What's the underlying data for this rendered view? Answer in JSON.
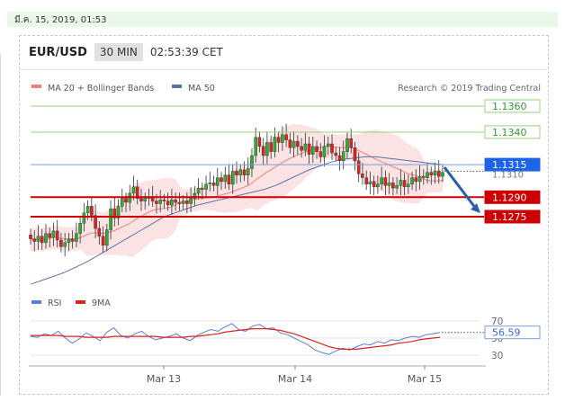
{
  "datetime": "มี.ค. 15, 2019, 01:53",
  "header": {
    "pair": "EUR/USD",
    "timeframe": "30 MIN",
    "time": "02:53:39 CET"
  },
  "legend": {
    "ma20": "MA 20 + Bollinger Bands",
    "ma50": "MA 50",
    "credit": "Research © 2019 Trading Central"
  },
  "rsi_legend": {
    "rsi": "RSI",
    "ma9": "9MA"
  },
  "colors": {
    "ma20": "#f08080",
    "ma50": "#5b73a8",
    "band": "#fadada",
    "up": "#33aa33",
    "down": "#dd2222",
    "resistance": "#cc0000",
    "support_green": "#9bd17a",
    "blue_line": "#7a9ee0",
    "blue_tag": "#1f63e6",
    "arrow": "#2a5fa8",
    "rsi": "#5b7ed8",
    "ma9": "#dd2222"
  },
  "chart_data": [
    {
      "type": "candlestick",
      "title": "EUR/USD",
      "timeframe": "30 MIN",
      "x_ticks": [
        "Mar 13",
        "Mar 14",
        "Mar 15"
      ],
      "ylim": [
        1.1212,
        1.1375
      ],
      "levels": [
        {
          "value": 1.136,
          "label": "1.1360",
          "style": "green"
        },
        {
          "value": 1.134,
          "label": "1.1340",
          "style": "green"
        },
        {
          "value": 1.1315,
          "label": "1.1315",
          "style": "blue"
        },
        {
          "value": 1.129,
          "label": "1.1290",
          "style": "red"
        },
        {
          "value": 1.1275,
          "label": "1.1275",
          "style": "red"
        }
      ],
      "current_price_label": "1.1310",
      "arrow": {
        "from": 1.1313,
        "to": 1.1275
      },
      "close_series": [
        1.1258,
        1.1256,
        1.126,
        1.1255,
        1.1262,
        1.1259,
        1.1264,
        1.1257,
        1.1252,
        1.1255,
        1.1258,
        1.1256,
        1.1262,
        1.127,
        1.1278,
        1.1283,
        1.1276,
        1.1266,
        1.126,
        1.1253,
        1.1265,
        1.1281,
        1.1274,
        1.1283,
        1.1289,
        1.1286,
        1.1293,
        1.1298,
        1.1289,
        1.1287,
        1.1289,
        1.129,
        1.1287,
        1.1285,
        1.1288,
        1.1287,
        1.1284,
        1.1288,
        1.1286,
        1.1285,
        1.1287,
        1.1285,
        1.1289,
        1.1293,
        1.1297,
        1.1296,
        1.13,
        1.1301,
        1.1299,
        1.1305,
        1.1302,
        1.1307,
        1.13,
        1.131,
        1.1307,
        1.1311,
        1.1307,
        1.1312,
        1.1322,
        1.1336,
        1.1329,
        1.1322,
        1.1332,
        1.1325,
        1.1336,
        1.1332,
        1.1338,
        1.1334,
        1.1328,
        1.1333,
        1.1329,
        1.1326,
        1.1331,
        1.1323,
        1.1329,
        1.1325,
        1.1321,
        1.1329,
        1.1331,
        1.1324,
        1.1322,
        1.1318,
        1.1325,
        1.1335,
        1.1328,
        1.1318,
        1.1308,
        1.1305,
        1.13,
        1.1302,
        1.1298,
        1.13,
        1.1305,
        1.1299,
        1.1301,
        1.1297,
        1.1299,
        1.1303,
        1.1298,
        1.13,
        1.1305,
        1.1302,
        1.1306,
        1.1305,
        1.1309,
        1.1307,
        1.131,
        1.1306,
        1.1309
      ],
      "ma50": [
        1.1223,
        1.1226,
        1.1229,
        1.1232,
        1.1236,
        1.124,
        1.1245,
        1.125,
        1.1255,
        1.126,
        1.1265,
        1.127,
        1.1275,
        1.1278,
        1.1281,
        1.1284,
        1.1286,
        1.1288,
        1.129,
        1.1292,
        1.1294,
        1.1296,
        1.1299,
        1.1303,
        1.1307,
        1.1311,
        1.1314,
        1.1317,
        1.1319,
        1.132,
        1.1321,
        1.1321,
        1.132,
        1.1319,
        1.1318,
        1.1317,
        1.1316,
        1.1315
      ]
    },
    {
      "type": "line",
      "title": "RSI",
      "series": [
        {
          "name": "RSI",
          "values": [
            52,
            51,
            55,
            53,
            58,
            50,
            44,
            49,
            56,
            52,
            47,
            57,
            62,
            53,
            50,
            55,
            58,
            52,
            48,
            50,
            52,
            55,
            50,
            47,
            53,
            57,
            60,
            58,
            63,
            67,
            60,
            58,
            64,
            66,
            61,
            62,
            56,
            54,
            50,
            46,
            42,
            36,
            33,
            31,
            35,
            38,
            36,
            40,
            43,
            42,
            46,
            44,
            48,
            47,
            50,
            52,
            51,
            54,
            55,
            56.59
          ]
        },
        {
          "name": "9MA",
          "values": [
            53,
            53,
            53,
            53,
            53,
            52,
            52,
            52,
            51,
            51,
            51,
            51,
            52,
            52,
            52,
            52,
            52,
            52,
            52,
            51,
            51,
            51,
            51,
            52,
            52,
            53,
            54,
            55,
            57,
            58,
            59,
            60,
            61,
            61,
            61,
            60,
            59,
            57,
            55,
            52,
            49,
            46,
            43,
            40,
            38,
            37,
            37,
            37,
            38,
            39,
            40,
            41,
            42,
            44,
            45,
            46,
            48,
            49,
            50,
            51
          ]
        }
      ],
      "ylim": [
        24,
        76
      ],
      "y_ticks": [
        "70",
        "50",
        "30"
      ],
      "current_value_label": "56.59"
    }
  ]
}
